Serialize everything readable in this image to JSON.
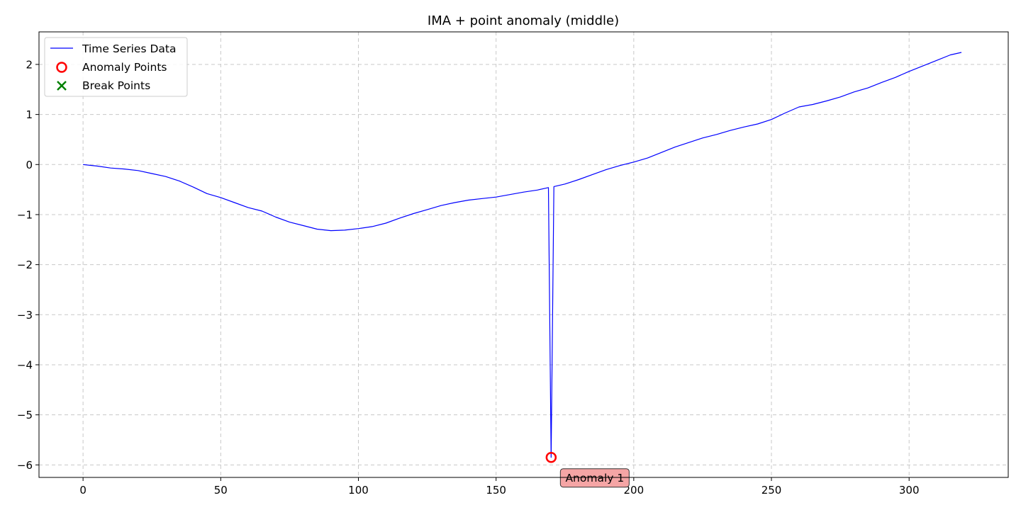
{
  "chart_data": {
    "type": "line",
    "title": "IMA + point anomaly (middle)",
    "xlabel": "",
    "ylabel": "",
    "xlim": [
      -16,
      336
    ],
    "ylim": [
      -6.25,
      2.65
    ],
    "xticks": [
      0,
      50,
      100,
      150,
      200,
      250,
      300
    ],
    "yticks": [
      2,
      1,
      0,
      -1,
      -2,
      -3,
      -4,
      -5,
      -6
    ],
    "ytick_labels": [
      "2",
      "1",
      "0",
      "−1",
      "−2",
      "−3",
      "−4",
      "−5",
      "−6"
    ],
    "grid": true,
    "legend_position": "top-left",
    "series": [
      {
        "name": "Time Series Data",
        "color": "#0000ff",
        "x": [
          0,
          5,
          10,
          15,
          20,
          25,
          30,
          35,
          40,
          45,
          50,
          55,
          60,
          65,
          70,
          75,
          80,
          85,
          90,
          95,
          100,
          105,
          110,
          115,
          120,
          125,
          130,
          135,
          140,
          145,
          150,
          155,
          160,
          165,
          169,
          170,
          171,
          175,
          180,
          185,
          190,
          195,
          200,
          205,
          210,
          215,
          220,
          225,
          230,
          235,
          240,
          245,
          250,
          255,
          260,
          265,
          270,
          275,
          280,
          285,
          290,
          295,
          300,
          305,
          310,
          315,
          319
        ],
        "y": [
          0.0,
          -0.03,
          -0.07,
          -0.09,
          -0.12,
          -0.18,
          -0.24,
          -0.33,
          -0.45,
          -0.58,
          -0.66,
          -0.76,
          -0.86,
          -0.93,
          -1.05,
          -1.15,
          -1.22,
          -1.29,
          -1.32,
          -1.31,
          -1.28,
          -1.24,
          -1.17,
          -1.07,
          -0.98,
          -0.9,
          -0.82,
          -0.76,
          -0.71,
          -0.68,
          -0.65,
          -0.6,
          -0.55,
          -0.51,
          -0.46,
          -5.85,
          -0.44,
          -0.39,
          -0.3,
          -0.2,
          -0.1,
          -0.02,
          0.05,
          0.13,
          0.24,
          0.35,
          0.44,
          0.53,
          0.6,
          0.68,
          0.75,
          0.81,
          0.9,
          1.03,
          1.15,
          1.2,
          1.27,
          1.35,
          1.45,
          1.53,
          1.64,
          1.74,
          1.86,
          1.97,
          2.08,
          2.19,
          2.24
        ]
      }
    ],
    "anomaly_points": {
      "name": "Anomaly Points",
      "color": "#ff0000",
      "points": [
        {
          "x": 170,
          "y": -5.85
        }
      ]
    },
    "break_points": {
      "name": "Break Points",
      "color": "#008000",
      "points": []
    },
    "annotations": [
      {
        "text": "Anomaly 1",
        "x": 170,
        "y": -5.85,
        "box_color": "#f4a0a0"
      }
    ]
  }
}
